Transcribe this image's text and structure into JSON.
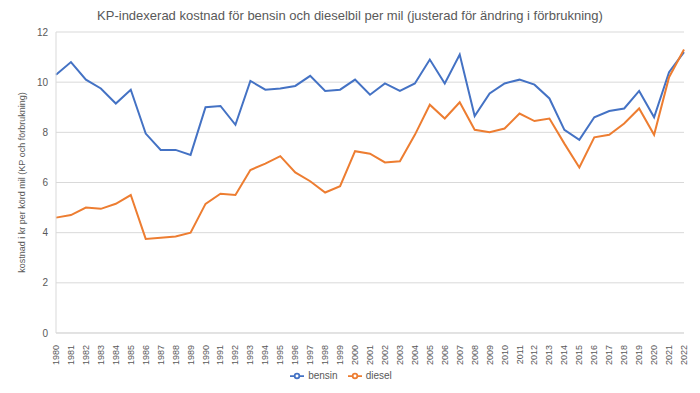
{
  "chart_data": {
    "type": "line",
    "title": "KP-indexerad kostnad för bensin och dieselbil per mil (justerad för ändring i förbrukning)",
    "y_label": "kostnad i kr per körd mil (KP och förbrukning)",
    "categories": [
      "1980",
      "1981",
      "1982",
      "1983",
      "1984",
      "1985",
      "1986",
      "1987",
      "1988",
      "1989",
      "1990",
      "1991",
      "1992",
      "1993",
      "1994",
      "1995",
      "1996",
      "1997",
      "1998",
      "1999",
      "2000",
      "2001",
      "2002",
      "2003",
      "2004",
      "2005",
      "2006",
      "2007",
      "2008",
      "2009",
      "2010",
      "2011",
      "2012",
      "2013",
      "2014",
      "2015",
      "2016",
      "2017",
      "2018",
      "2019",
      "2020",
      "2021",
      "2022"
    ],
    "series": [
      {
        "name": "bensin",
        "color": "#4472c4",
        "values": [
          10.3,
          10.8,
          10.1,
          9.75,
          9.15,
          9.7,
          7.95,
          7.3,
          7.3,
          7.1,
          9.0,
          9.05,
          8.3,
          10.05,
          9.7,
          9.75,
          9.85,
          10.25,
          9.65,
          9.7,
          10.1,
          9.5,
          9.95,
          9.65,
          9.95,
          10.9,
          9.95,
          11.1,
          8.65,
          9.55,
          9.95,
          10.1,
          9.9,
          9.35,
          8.1,
          7.7,
          8.6,
          8.85,
          8.95,
          9.65,
          8.6,
          10.4,
          11.2
        ]
      },
      {
        "name": "diesel",
        "color": "#ed7d31",
        "values": [
          4.6,
          4.7,
          5.0,
          4.95,
          5.15,
          5.5,
          3.75,
          3.8,
          3.85,
          4.0,
          5.15,
          5.55,
          5.5,
          6.5,
          6.75,
          7.05,
          6.4,
          6.05,
          5.6,
          5.85,
          7.25,
          7.15,
          6.8,
          6.85,
          7.9,
          9.1,
          8.55,
          9.2,
          8.1,
          8.0,
          8.15,
          8.75,
          8.45,
          8.55,
          7.55,
          6.6,
          7.8,
          7.9,
          8.35,
          8.95,
          7.9,
          10.2,
          11.3
        ]
      }
    ],
    "ylim": [
      0,
      12
    ],
    "yticks": [
      0,
      2,
      4,
      6,
      8,
      10,
      12
    ],
    "grid": true,
    "legend": "bottom"
  }
}
